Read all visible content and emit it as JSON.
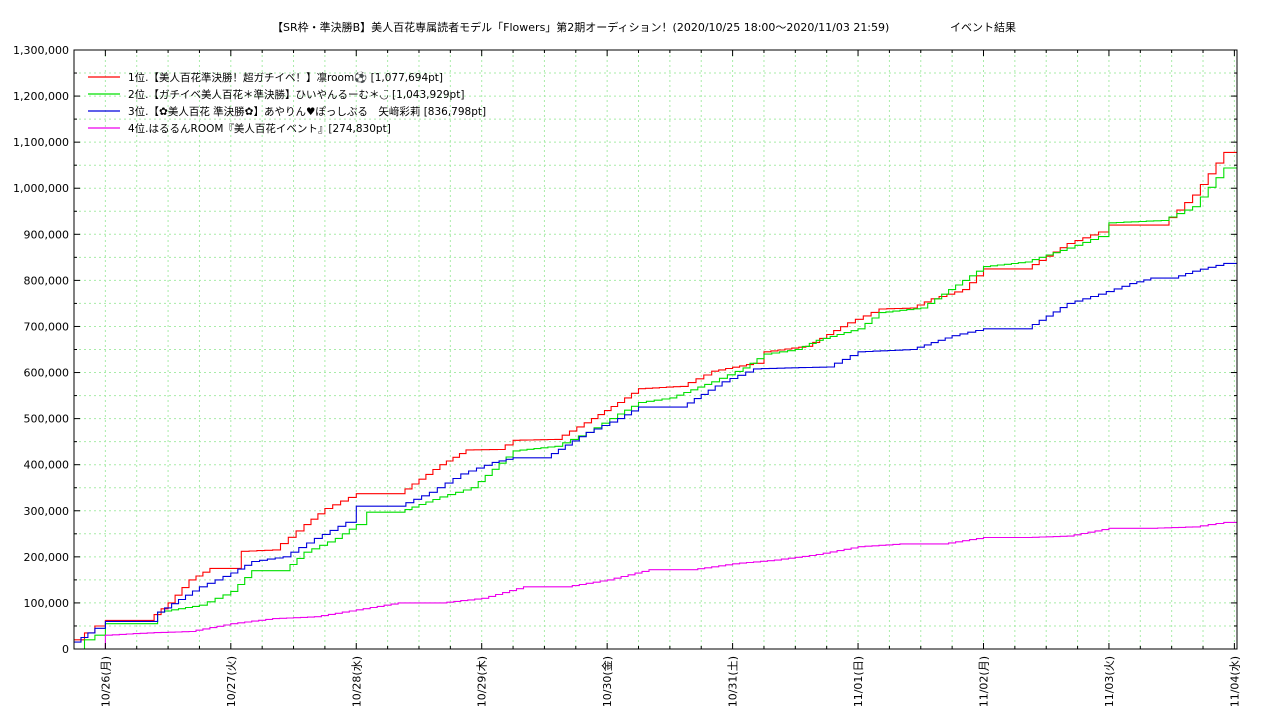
{
  "chart_data": {
    "type": "line",
    "title": "【SR枠・準決勝B】美人百花専属読者モデル「Flowers」第2期オーディション！(2020/10/25 18:00〜2020/11/03 21:59)",
    "subtitle": "イベント結果",
    "xlabel": "",
    "ylabel": "",
    "x_ticks": [
      "10/26(月)",
      "10/27(火)",
      "10/28(水)",
      "10/29(木)",
      "10/30(金)",
      "10/31(土)",
      "11/01(日)",
      "11/02(月)",
      "11/03(火)",
      "11/04(水)"
    ],
    "y_ticks": [
      "0",
      "100,000",
      "200,000",
      "300,000",
      "400,000",
      "500,000",
      "600,000",
      "700,000",
      "800,000",
      "900,000",
      "1,000,000",
      "1,100,000",
      "1,200,000",
      "1,300,000"
    ],
    "xlim": [
      "2020/10/25 18:00",
      "2020/11/04 00:30"
    ],
    "ylim": [
      0,
      1300000
    ],
    "grid": true,
    "legend_position": "top-left",
    "series": [
      {
        "name": "1位.【美人百花準決勝！超ガチイベ！】凛room⚽ [1,077,694pt]",
        "color": "#ff0000",
        "points": [
          [
            "2020/10/25 18:00",
            20000
          ],
          [
            "2020/10/25 20:00",
            35000
          ],
          [
            "2020/10/25 22:00",
            50000
          ],
          [
            "2020/10/26 00:00",
            62000
          ],
          [
            "2020/10/26 08:00",
            62000
          ],
          [
            "2020/10/26 12:00",
            100000
          ],
          [
            "2020/10/26 16:00",
            150000
          ],
          [
            "2020/10/26 20:00",
            175000
          ],
          [
            "2020/10/27 00:00",
            175000
          ],
          [
            "2020/10/27 02:00",
            212000
          ],
          [
            "2020/10/27 08:00",
            215000
          ],
          [
            "2020/10/27 14:00",
            270000
          ],
          [
            "2020/10/27 18:00",
            305000
          ],
          [
            "2020/10/28 00:00",
            337000
          ],
          [
            "2020/10/28 08:00",
            337000
          ],
          [
            "2020/10/28 16:00",
            400000
          ],
          [
            "2020/10/28 21:00",
            432000
          ],
          [
            "2020/10/29 03:00",
            433000
          ],
          [
            "2020/10/29 06:00",
            453000
          ],
          [
            "2020/10/29 14:00",
            455000
          ],
          [
            "2020/10/29 21:00",
            500000
          ],
          [
            "2020/10/30 02:00",
            535000
          ],
          [
            "2020/10/30 06:00",
            565000
          ],
          [
            "2020/10/30 14:00",
            570000
          ],
          [
            "2020/10/30 20:00",
            603000
          ],
          [
            "2020/10/31 04:00",
            620000
          ],
          [
            "2020/10/31 06:00",
            645000
          ],
          [
            "2020/10/31 14:00",
            657000
          ],
          [
            "2020/10/31 22:00",
            708000
          ],
          [
            "2020/11/01 04:00",
            738000
          ],
          [
            "2020/11/01 10:00",
            740000
          ],
          [
            "2020/11/01 14:00",
            760000
          ],
          [
            "2020/11/01 20:00",
            780000
          ],
          [
            "2020/11/02 00:00",
            825000
          ],
          [
            "2020/11/02 08:00",
            825000
          ],
          [
            "2020/11/02 16:00",
            880000
          ],
          [
            "2020/11/02 22:00",
            905000
          ],
          [
            "2020/11/03 00:00",
            920000
          ],
          [
            "2020/11/03 10:00",
            920000
          ],
          [
            "2020/11/03 16:00",
            985000
          ],
          [
            "2020/11/03 21:59",
            1077694
          ],
          [
            "2020/11/04 00:30",
            1077694
          ]
        ]
      },
      {
        "name": "2位.【ガチイベ美人百花＊準決勝】ひいやんるーむ＊◡̈ [1,043,929pt]",
        "color": "#00e000",
        "points": [
          [
            "2020/10/25 18:00",
            0
          ],
          [
            "2020/10/25 20:00",
            20000
          ],
          [
            "2020/10/25 22:00",
            30000
          ],
          [
            "2020/10/26 00:00",
            55000
          ],
          [
            "2020/10/26 08:00",
            55000
          ],
          [
            "2020/10/26 10:00",
            80000
          ],
          [
            "2020/10/26 18:00",
            95000
          ],
          [
            "2020/10/27 00:00",
            125000
          ],
          [
            "2020/10/27 04:00",
            170000
          ],
          [
            "2020/10/27 10:00",
            170000
          ],
          [
            "2020/10/27 14:00",
            210000
          ],
          [
            "2020/10/27 20:00",
            240000
          ],
          [
            "2020/10/28 00:00",
            270000
          ],
          [
            "2020/10/28 02:00",
            297000
          ],
          [
            "2020/10/28 08:00",
            297000
          ],
          [
            "2020/10/28 16:00",
            330000
          ],
          [
            "2020/10/28 22:00",
            350000
          ],
          [
            "2020/10/29 06:00",
            430000
          ],
          [
            "2020/10/29 14:00",
            440000
          ],
          [
            "2020/10/29 20:00",
            470000
          ],
          [
            "2020/10/30 02:00",
            510000
          ],
          [
            "2020/10/30 06:00",
            535000
          ],
          [
            "2020/10/30 12:00",
            545000
          ],
          [
            "2020/10/30 20:00",
            580000
          ],
          [
            "2020/10/31 02:00",
            610000
          ],
          [
            "2020/10/31 06:00",
            640000
          ],
          [
            "2020/10/31 12:00",
            650000
          ],
          [
            "2020/10/31 16:00",
            670000
          ],
          [
            "2020/11/01 00:00",
            695000
          ],
          [
            "2020/11/01 04:00",
            730000
          ],
          [
            "2020/11/01 12:00",
            740000
          ],
          [
            "2020/11/01 20:00",
            800000
          ],
          [
            "2020/11/02 00:00",
            830000
          ],
          [
            "2020/11/02 08:00",
            840000
          ],
          [
            "2020/11/02 16:00",
            870000
          ],
          [
            "2020/11/02 22:00",
            895000
          ],
          [
            "2020/11/03 00:00",
            925000
          ],
          [
            "2020/11/03 10:00",
            930000
          ],
          [
            "2020/11/03 16:00",
            960000
          ],
          [
            "2020/11/03 21:59",
            1043929
          ],
          [
            "2020/11/04 00:30",
            1043929
          ]
        ]
      },
      {
        "name": "3位.【✿美人百花 準決勝✿】あやりん♥ぽっしぶる　矢﨑彩莉 [836,798pt]",
        "color": "#0000dd",
        "points": [
          [
            "2020/10/25 18:00",
            15000
          ],
          [
            "2020/10/25 22:00",
            45000
          ],
          [
            "2020/10/26 00:00",
            60000
          ],
          [
            "2020/10/26 08:00",
            60000
          ],
          [
            "2020/10/26 10:00",
            80000
          ],
          [
            "2020/10/26 18:00",
            135000
          ],
          [
            "2020/10/27 00:00",
            165000
          ],
          [
            "2020/10/27 04:00",
            190000
          ],
          [
            "2020/10/27 10:00",
            200000
          ],
          [
            "2020/10/27 16:00",
            240000
          ],
          [
            "2020/10/27 22:00",
            275000
          ],
          [
            "2020/10/28 00:00",
            310000
          ],
          [
            "2020/10/28 08:00",
            310000
          ],
          [
            "2020/10/28 14:00",
            340000
          ],
          [
            "2020/10/28 20:00",
            380000
          ],
          [
            "2020/10/29 02:00",
            405000
          ],
          [
            "2020/10/29 06:00",
            415000
          ],
          [
            "2020/10/29 12:00",
            415000
          ],
          [
            "2020/10/29 20:00",
            470000
          ],
          [
            "2020/10/30 02:00",
            500000
          ],
          [
            "2020/10/30 06:00",
            525000
          ],
          [
            "2020/10/30 14:00",
            525000
          ],
          [
            "2020/10/30 22:00",
            580000
          ],
          [
            "2020/10/31 04:00",
            608000
          ],
          [
            "2020/10/31 10:00",
            610000
          ],
          [
            "2020/10/31 18:00",
            612000
          ],
          [
            "2020/11/01 00:00",
            645000
          ],
          [
            "2020/11/01 10:00",
            650000
          ],
          [
            "2020/11/01 18:00",
            680000
          ],
          [
            "2020/11/02 00:00",
            695000
          ],
          [
            "2020/11/02 08:00",
            695000
          ],
          [
            "2020/11/02 16:00",
            750000
          ],
          [
            "2020/11/02 22:00",
            770000
          ],
          [
            "2020/11/03 04:00",
            793000
          ],
          [
            "2020/11/03 08:00",
            805000
          ],
          [
            "2020/11/03 12:00",
            805000
          ],
          [
            "2020/11/03 16:00",
            820000
          ],
          [
            "2020/11/03 21:59",
            836798
          ],
          [
            "2020/11/04 00:30",
            836798
          ]
        ]
      },
      {
        "name": "4位.はるるんROOM『美人百花イベント』[274,830pt]",
        "color": "#ee00ee",
        "points": [
          [
            "2020/10/25 18:00",
            0
          ],
          [
            "2020/10/25 22:00",
            0
          ],
          [
            "2020/10/26 00:00",
            30000
          ],
          [
            "2020/10/26 08:00",
            35000
          ],
          [
            "2020/10/26 16:00",
            38000
          ],
          [
            "2020/10/27 00:00",
            55000
          ],
          [
            "2020/10/27 08:00",
            66000
          ],
          [
            "2020/10/27 16:00",
            70000
          ],
          [
            "2020/10/28 00:00",
            85000
          ],
          [
            "2020/10/28 08:00",
            100000
          ],
          [
            "2020/10/28 16:00",
            100000
          ],
          [
            "2020/10/29 00:00",
            110000
          ],
          [
            "2020/10/29 08:00",
            135000
          ],
          [
            "2020/10/29 16:00",
            135000
          ],
          [
            "2020/10/30 00:00",
            150000
          ],
          [
            "2020/10/30 08:00",
            172000
          ],
          [
            "2020/10/30 16:00",
            172000
          ],
          [
            "2020/10/31 00:00",
            185000
          ],
          [
            "2020/10/31 08:00",
            193000
          ],
          [
            "2020/10/31 16:00",
            205000
          ],
          [
            "2020/11/01 00:00",
            222000
          ],
          [
            "2020/11/01 08:00",
            228000
          ],
          [
            "2020/11/01 16:00",
            228000
          ],
          [
            "2020/11/02 00:00",
            242000
          ],
          [
            "2020/11/02 08:00",
            242000
          ],
          [
            "2020/11/02 16:00",
            245000
          ],
          [
            "2020/11/03 00:00",
            262000
          ],
          [
            "2020/11/03 08:00",
            262000
          ],
          [
            "2020/11/03 16:00",
            265000
          ],
          [
            "2020/11/03 21:59",
            274830
          ],
          [
            "2020/11/04 00:30",
            274830
          ]
        ]
      }
    ]
  }
}
